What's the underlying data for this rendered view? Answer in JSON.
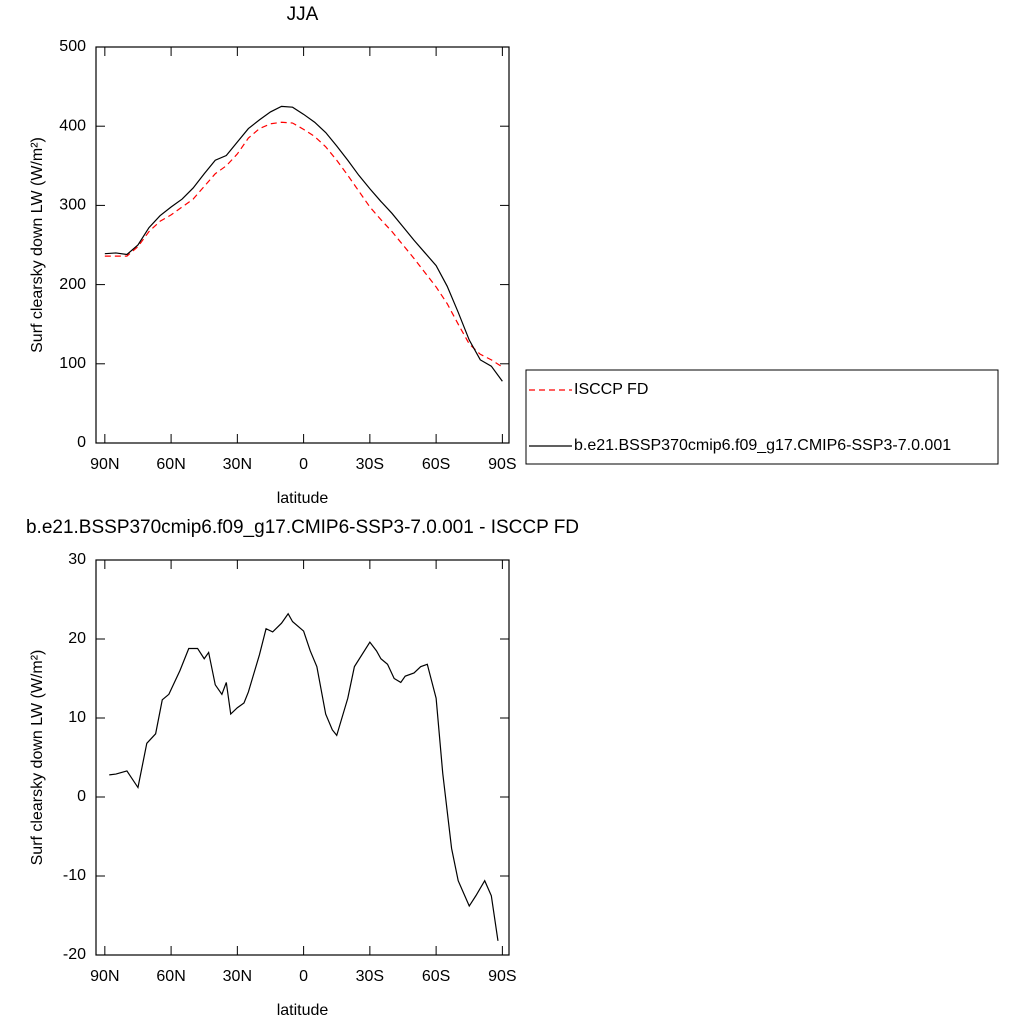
{
  "chart_data": [
    {
      "type": "line",
      "title": "JJA",
      "xlabel": "latitude",
      "ylabel": "Surf clearsky down LW (W/m²)",
      "x": [
        90,
        85,
        80,
        75,
        70,
        65,
        60,
        55,
        50,
        45,
        40,
        35,
        30,
        25,
        20,
        15,
        10,
        5,
        0,
        -5,
        -10,
        -15,
        -20,
        -25,
        -30,
        -35,
        -40,
        -45,
        -50,
        -55,
        -60,
        -65,
        -70,
        -75,
        -80,
        -85,
        -90
      ],
      "series": [
        {
          "name": "ISCCP FD",
          "color": "#ff0000",
          "line_style": "dashed",
          "values": [
            236,
            236,
            236,
            248,
            267,
            280,
            288,
            298,
            308,
            324,
            340,
            350,
            365,
            385,
            397,
            403,
            405,
            404,
            396,
            387,
            374,
            357,
            338,
            318,
            298,
            282,
            267,
            250,
            233,
            215,
            197,
            176,
            150,
            125,
            112,
            105,
            96
          ]
        },
        {
          "name": "b.e21.BSSP370cmip6.f09_g17.CMIP6-SSP3-7.0.001",
          "color": "#000000",
          "line_style": "solid",
          "values": [
            239,
            240,
            238,
            250,
            272,
            287,
            298,
            308,
            322,
            340,
            357,
            363,
            380,
            397,
            408,
            418,
            425,
            424,
            415,
            405,
            392,
            375,
            357,
            338,
            321,
            305,
            290,
            273,
            256,
            240,
            224,
            198,
            165,
            130,
            105,
            97,
            78
          ]
        }
      ],
      "xlim": [
        94,
        -93
      ],
      "xticks": [
        {
          "value": 90,
          "label": "90N"
        },
        {
          "value": 60,
          "label": "60N"
        },
        {
          "value": 30,
          "label": "30N"
        },
        0,
        {
          "value": -30,
          "label": "30S"
        },
        {
          "value": -60,
          "label": "60S"
        },
        {
          "value": -90,
          "label": "90S"
        }
      ],
      "ylim": [
        0,
        500
      ],
      "yticks": [
        0,
        100,
        200,
        300,
        400,
        500
      ],
      "legend": "right"
    },
    {
      "type": "line",
      "title": "b.e21.BSSP370cmip6.f09_g17.CMIP6-SSP3-7.0.001 - ISCCP FD",
      "xlabel": "latitude",
      "ylabel": "Surf clearsky down LW (W/m²)",
      "x": [
        88,
        85,
        80,
        75,
        71,
        67,
        64,
        61,
        56,
        52,
        48,
        45,
        43,
        40,
        37,
        35,
        33,
        30,
        27,
        25,
        20,
        17,
        14,
        10,
        7,
        5,
        0,
        -3,
        -6,
        -10,
        -13,
        -15,
        -20,
        -23,
        -30,
        -33,
        -35,
        -38,
        -41,
        -44,
        -46,
        -50,
        -53,
        -56,
        -60,
        -63,
        -67,
        -70,
        -75,
        -78,
        -82,
        -85,
        -88
      ],
      "series": [
        {
          "color": "#000000",
          "line_style": "solid",
          "values": [
            2.8,
            2.9,
            3.3,
            1.2,
            6.8,
            8,
            12.3,
            13,
            16,
            18.8,
            18.8,
            17.5,
            18.3,
            14.2,
            13,
            14.5,
            10.5,
            11.3,
            11.9,
            13.3,
            18,
            21.3,
            20.9,
            22,
            23.2,
            22.2,
            21,
            18.5,
            16.5,
            10.5,
            8.5,
            7.8,
            12.5,
            16.5,
            19.6,
            18.5,
            17.5,
            16.8,
            15,
            14.5,
            15.3,
            15.7,
            16.5,
            16.8,
            12.5,
            3,
            -6.5,
            -10.6,
            -13.8,
            -12.5,
            -10.6,
            -12.5,
            -18.2
          ]
        }
      ],
      "xlim": [
        94,
        -93
      ],
      "xticks": [
        {
          "value": 90,
          "label": "90N"
        },
        {
          "value": 60,
          "label": "60N"
        },
        {
          "value": 30,
          "label": "30N"
        },
        0,
        {
          "value": -30,
          "label": "30S"
        },
        {
          "value": -60,
          "label": "60S"
        },
        {
          "value": -90,
          "label": "90S"
        }
      ],
      "ylim": [
        -20,
        30
      ],
      "yticks": [
        -20,
        -10,
        0,
        10,
        20,
        30
      ]
    }
  ]
}
